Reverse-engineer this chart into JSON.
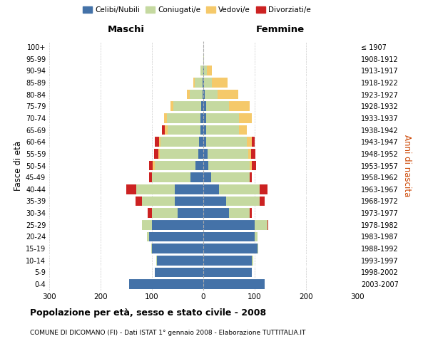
{
  "age_groups": [
    "0-4",
    "5-9",
    "10-14",
    "15-19",
    "20-24",
    "25-29",
    "30-34",
    "35-39",
    "40-44",
    "45-49",
    "50-54",
    "55-59",
    "60-64",
    "65-69",
    "70-74",
    "75-79",
    "80-84",
    "85-89",
    "90-94",
    "95-99",
    "100+"
  ],
  "birth_years": [
    "2003-2007",
    "1998-2002",
    "1993-1997",
    "1988-1992",
    "1983-1987",
    "1978-1982",
    "1973-1977",
    "1968-1972",
    "1963-1967",
    "1958-1962",
    "1953-1957",
    "1948-1952",
    "1943-1947",
    "1938-1942",
    "1933-1937",
    "1928-1932",
    "1923-1927",
    "1918-1922",
    "1913-1917",
    "1908-1912",
    "≤ 1907"
  ],
  "colors": {
    "celibi": "#4472a8",
    "coniugati": "#c5d9a0",
    "vedovi": "#f5c96a",
    "divorziati": "#cc2222"
  },
  "legend_labels": [
    "Celibi/Nubili",
    "Coniugati/e",
    "Vedovi/e",
    "Divorziati/e"
  ],
  "maschi": {
    "celibi": [
      145,
      95,
      90,
      100,
      105,
      100,
      50,
      55,
      55,
      25,
      15,
      10,
      8,
      5,
      6,
      4,
      2,
      2,
      0,
      0,
      0
    ],
    "coniugati": [
      0,
      0,
      2,
      2,
      5,
      20,
      50,
      65,
      75,
      75,
      80,
      75,
      75,
      65,
      65,
      55,
      25,
      15,
      5,
      0,
      0
    ],
    "vedovi": [
      0,
      0,
      0,
      0,
      0,
      0,
      0,
      0,
      0,
      0,
      3,
      3,
      3,
      5,
      5,
      5,
      5,
      2,
      0,
      0,
      0
    ],
    "divorziati": [
      0,
      0,
      0,
      0,
      0,
      0,
      8,
      12,
      20,
      5,
      8,
      8,
      8,
      5,
      0,
      0,
      0,
      0,
      0,
      0,
      0
    ]
  },
  "femmine": {
    "celibi": [
      120,
      95,
      95,
      105,
      100,
      100,
      50,
      45,
      30,
      15,
      10,
      8,
      5,
      5,
      5,
      5,
      3,
      2,
      2,
      0,
      0
    ],
    "coniugati": [
      0,
      0,
      2,
      2,
      5,
      25,
      40,
      65,
      80,
      75,
      80,
      80,
      80,
      65,
      65,
      45,
      25,
      15,
      5,
      2,
      0
    ],
    "vedovi": [
      0,
      0,
      0,
      0,
      0,
      0,
      0,
      0,
      0,
      0,
      5,
      5,
      10,
      15,
      25,
      40,
      40,
      30,
      10,
      0,
      0
    ],
    "divorziati": [
      0,
      0,
      0,
      0,
      0,
      2,
      5,
      10,
      15,
      5,
      8,
      8,
      5,
      0,
      0,
      0,
      0,
      0,
      0,
      0,
      0
    ]
  },
  "xlim": 300,
  "title": "Popolazione per età, sesso e stato civile - 2008",
  "subtitle": "COMUNE DI DICOMANO (FI) - Dati ISTAT 1° gennaio 2008 - Elaborazione TUTTITALIA.IT",
  "xlabel_left": "Maschi",
  "xlabel_right": "Femmine",
  "ylabel_left": "Fasce di età",
  "ylabel_right": "Anni di nascita",
  "background_color": "#ffffff",
  "grid_color": "#cccccc"
}
